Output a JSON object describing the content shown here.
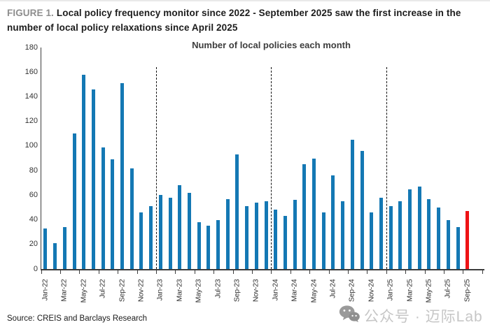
{
  "figure_header": {
    "label": "FIGURE 1.",
    "line1": "Local policy frequency monitor since 2022 - September 2025 saw the first increase in the",
    "line2": "number of local policy relaxations since April 2025"
  },
  "chart_data": {
    "type": "bar",
    "title": "Number of local policies each month",
    "categories": [
      "Jan-22",
      "Feb-22",
      "Mar-22",
      "Apr-22",
      "May-22",
      "Jun-22",
      "Jul-22",
      "Aug-22",
      "Sep-22",
      "Oct-22",
      "Nov-22",
      "Dec-22",
      "Jan-23",
      "Feb-23",
      "Mar-23",
      "Apr-23",
      "May-23",
      "Jun-23",
      "Jul-23",
      "Aug-23",
      "Sep-23",
      "Oct-23",
      "Nov-23",
      "Dec-23",
      "Jan-24",
      "Feb-24",
      "Mar-24",
      "Apr-24",
      "May-24",
      "Jun-24",
      "Jul-24",
      "Aug-24",
      "Sep-24",
      "Oct-24",
      "Nov-24",
      "Dec-24",
      "Jan-25",
      "Feb-25",
      "Mar-25",
      "Apr-25",
      "May-25",
      "Jun-25",
      "Jul-25",
      "Aug-25",
      "Sep-25"
    ],
    "values": [
      33,
      21,
      34,
      110,
      158,
      146,
      99,
      89,
      151,
      82,
      46,
      51,
      60,
      58,
      68,
      62,
      38,
      35,
      40,
      57,
      93,
      51,
      54,
      55,
      48,
      43,
      56,
      85,
      90,
      46,
      76,
      55,
      105,
      96,
      46,
      58,
      51,
      55,
      65,
      67,
      57,
      50,
      40,
      34,
      47
    ],
    "x_label_every": 2,
    "ylabel": "",
    "xlabel": "",
    "ylim": [
      0,
      180
    ],
    "y_tick_step": 20,
    "grid": false,
    "legend": "none",
    "bar_color": "#1478b4",
    "highlight_color": "#ee1215",
    "highlight_category": "Sep-25",
    "highlight_index": 44,
    "dashed_separators_before": [
      "Jan-23",
      "Jan-24",
      "Jan-25"
    ],
    "axis_color": "#3c3c3c"
  },
  "source": "Source: CREIS and Barclays Research",
  "watermark": {
    "icon": "wechat-icon",
    "text": "公众号 · 迈际Lab"
  }
}
